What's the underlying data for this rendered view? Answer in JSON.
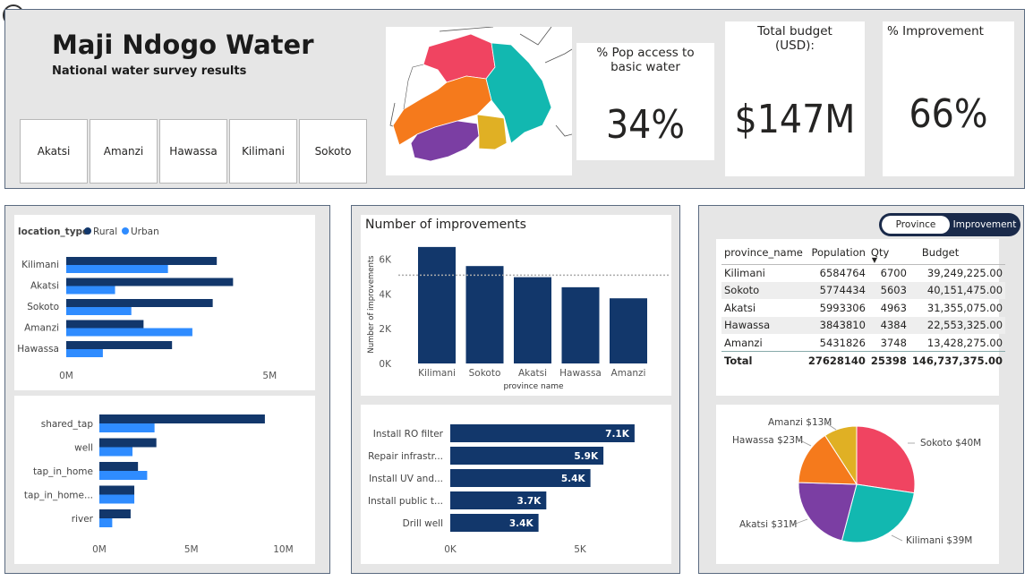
{
  "header": {
    "title": "Maji Ndogo Water",
    "subtitle": "National water survey results",
    "provinces": [
      "Akatsi",
      "Amanzi",
      "Hawassa",
      "Kilimani",
      "Sokoto"
    ]
  },
  "kpis": [
    {
      "label": "% Pop access to basic water",
      "value": "34%"
    },
    {
      "label": "Total budget (USD):",
      "value": "$147M"
    },
    {
      "label": "% Improvement",
      "value": "66%"
    }
  ],
  "toggle": {
    "left": "Province",
    "right": "Improvement"
  },
  "colors": {
    "dark": "#12376b",
    "light": "#2f8cff",
    "panel": "#e6e6e6",
    "sokoto": "#f04461",
    "kilimani": "#12b8b0",
    "akatsi": "#7b3ea3",
    "hawassa": "#f57a1c",
    "amanzi": "#e0b024"
  },
  "table": {
    "headers": [
      "province_name",
      "Population",
      "Qty",
      "Budget"
    ],
    "rows": [
      [
        "Kilimani",
        "6584764",
        "6700",
        "39,249,225.00"
      ],
      [
        "Sokoto",
        "5774434",
        "5603",
        "40,151,475.00"
      ],
      [
        "Akatsi",
        "5993306",
        "4963",
        "31,355,075.00"
      ],
      [
        "Hawassa",
        "3843810",
        "4384",
        "22,553,325.00"
      ],
      [
        "Amanzi",
        "5431826",
        "3748",
        "13,428,275.00"
      ]
    ],
    "total": [
      "Total",
      "27628140",
      "25398",
      "146,737,375.00"
    ]
  },
  "chart_data": [
    {
      "type": "bar",
      "orientation": "horizontal",
      "legend_title": "location_type",
      "categories": [
        "Kilimani",
        "Akatsi",
        "Sokoto",
        "Amanzi",
        "Hawassa"
      ],
      "series": [
        {
          "name": "Rural",
          "values": [
            3.7,
            4.1,
            3.6,
            1.9,
            2.6
          ]
        },
        {
          "name": "Urban",
          "values": [
            2.5,
            1.2,
            1.6,
            3.1,
            0.9
          ]
        }
      ],
      "xlim": [
        0,
        5.5
      ],
      "xticks": [
        "0M",
        "5M"
      ],
      "tick_values": [
        0,
        5
      ]
    },
    {
      "type": "bar",
      "orientation": "horizontal",
      "categories": [
        "shared_tap",
        "well",
        "tap_in_home",
        "tap_in_home...",
        "river"
      ],
      "series": [
        {
          "name": "Rural",
          "values": [
            9.0,
            3.1,
            2.1,
            1.9,
            1.7
          ]
        },
        {
          "name": "Urban",
          "values": [
            3.0,
            1.8,
            2.6,
            1.9,
            0.7
          ]
        }
      ],
      "xlim": [
        0,
        11
      ],
      "xticks": [
        "0M",
        "5M",
        "10M"
      ],
      "tick_values": [
        0,
        5,
        10
      ]
    },
    {
      "type": "bar",
      "title": "Number of improvements",
      "xlabel": "province name",
      "ylabel": "Number of improvements",
      "categories": [
        "Kilimani",
        "Sokoto",
        "Akatsi",
        "Hawassa",
        "Amanzi"
      ],
      "values": [
        6700,
        5603,
        4963,
        4384,
        3748
      ],
      "reference_line": 5080,
      "ylim": [
        0,
        6900
      ],
      "yticks": [
        "0K",
        "2K",
        "4K",
        "6K"
      ],
      "tick_values": [
        0,
        2000,
        4000,
        6000
      ]
    },
    {
      "type": "bar",
      "orientation": "horizontal",
      "categories": [
        "Install RO filter",
        "Repair infrastr...",
        "Install UV and...",
        "Install public t...",
        "Drill well"
      ],
      "values": [
        7100,
        5900,
        5400,
        3700,
        3400
      ],
      "data_labels": [
        "7.1K",
        "5.9K",
        "5.4K",
        "3.7K",
        "3.4K"
      ],
      "xlim": [
        0,
        8000
      ],
      "xticks": [
        "0K",
        "5K"
      ],
      "tick_values": [
        0,
        5000
      ]
    },
    {
      "type": "pie",
      "slices": [
        {
          "label": "Sokoto $40M",
          "value": 40.15,
          "color": "#f04461"
        },
        {
          "label": "Kilimani $39M",
          "value": 39.25,
          "color": "#12b8b0"
        },
        {
          "label": "Akatsi $31M",
          "value": 31.36,
          "color": "#7b3ea3"
        },
        {
          "label": "Hawassa $23M",
          "value": 22.55,
          "color": "#f57a1c"
        },
        {
          "label": "Amanzi $13M",
          "value": 13.43,
          "color": "#e0b024"
        }
      ]
    }
  ]
}
